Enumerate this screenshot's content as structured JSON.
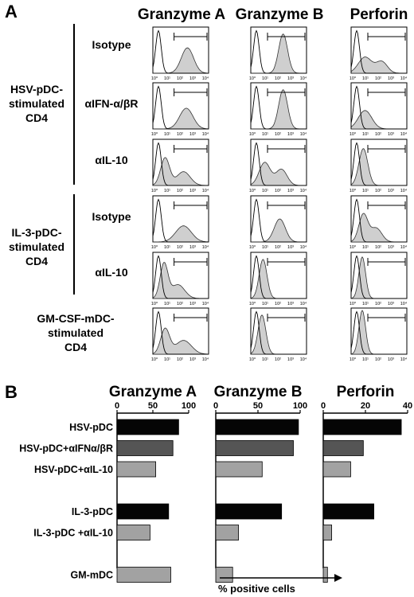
{
  "panel_a": {
    "letter": "A",
    "columns": [
      "Granzyme A",
      "Granzyme B",
      "Perforin"
    ],
    "groups": [
      {
        "label": [
          "HSV-pDC-",
          "stimulated",
          "CD4"
        ],
        "rows": [
          "Isotype",
          "αIFN-α/βR",
          "αIL-10"
        ]
      },
      {
        "label": [
          "IL-3-pDC-",
          "stimulated",
          "CD4"
        ],
        "rows": [
          "Isotype",
          "αIL-10"
        ]
      },
      {
        "label": [
          "GM-CSF-mDC-",
          "stimulated",
          "CD4"
        ],
        "rows": [
          ""
        ]
      }
    ],
    "axis_ticks": [
      "10⁰",
      "10¹",
      "10²",
      "10³",
      "10⁴"
    ]
  },
  "panel_b": {
    "letter": "B",
    "xlabel": "% positive cells",
    "bar_colors": [
      "#050505",
      "#555555",
      "#a2a2a2",
      "#ffffff",
      "#050505",
      "#a2a2a2",
      "#ffffff",
      "#a2a2a2"
    ]
  },
  "chart_data": [
    {
      "type": "bar",
      "title": "Granzyme A",
      "categories": [
        "HSV-pDC",
        "HSV-pDC+αIFNα/βR",
        "HSV-pDC+αIL-10",
        "",
        "IL-3-pDC",
        "IL-3-pDC +αIL-10",
        "",
        "GM-mDC"
      ],
      "values": [
        86,
        78,
        54,
        null,
        72,
        46,
        null,
        75
      ],
      "xlim": [
        0,
        100
      ],
      "xticks": [
        "0",
        "50",
        "100"
      ]
    },
    {
      "type": "bar",
      "title": "Granzyme B",
      "categories": [
        "HSV-pDC",
        "HSV-pDC+αIFNα/βR",
        "HSV-pDC+αIL-10",
        "",
        "IL-3-pDC",
        "IL-3-pDC +αIL-10",
        "",
        "GM-mDC"
      ],
      "values": [
        98,
        92,
        55,
        null,
        78,
        27,
        null,
        20
      ],
      "xlim": [
        0,
        100
      ],
      "xticks": [
        "0",
        "50",
        "100"
      ]
    },
    {
      "type": "bar",
      "title": "Perforin",
      "categories": [
        "HSV-pDC",
        "HSV-pDC+αIFNα/βR",
        "HSV-pDC+αIL-10",
        "",
        "IL-3-pDC",
        "IL-3-pDC +αIL-10",
        "",
        "GM-mDC"
      ],
      "values": [
        37,
        19,
        13,
        null,
        24,
        4,
        null,
        2
      ],
      "xlim": [
        0,
        40
      ],
      "xticks": [
        "0",
        "20",
        "40"
      ]
    }
  ]
}
